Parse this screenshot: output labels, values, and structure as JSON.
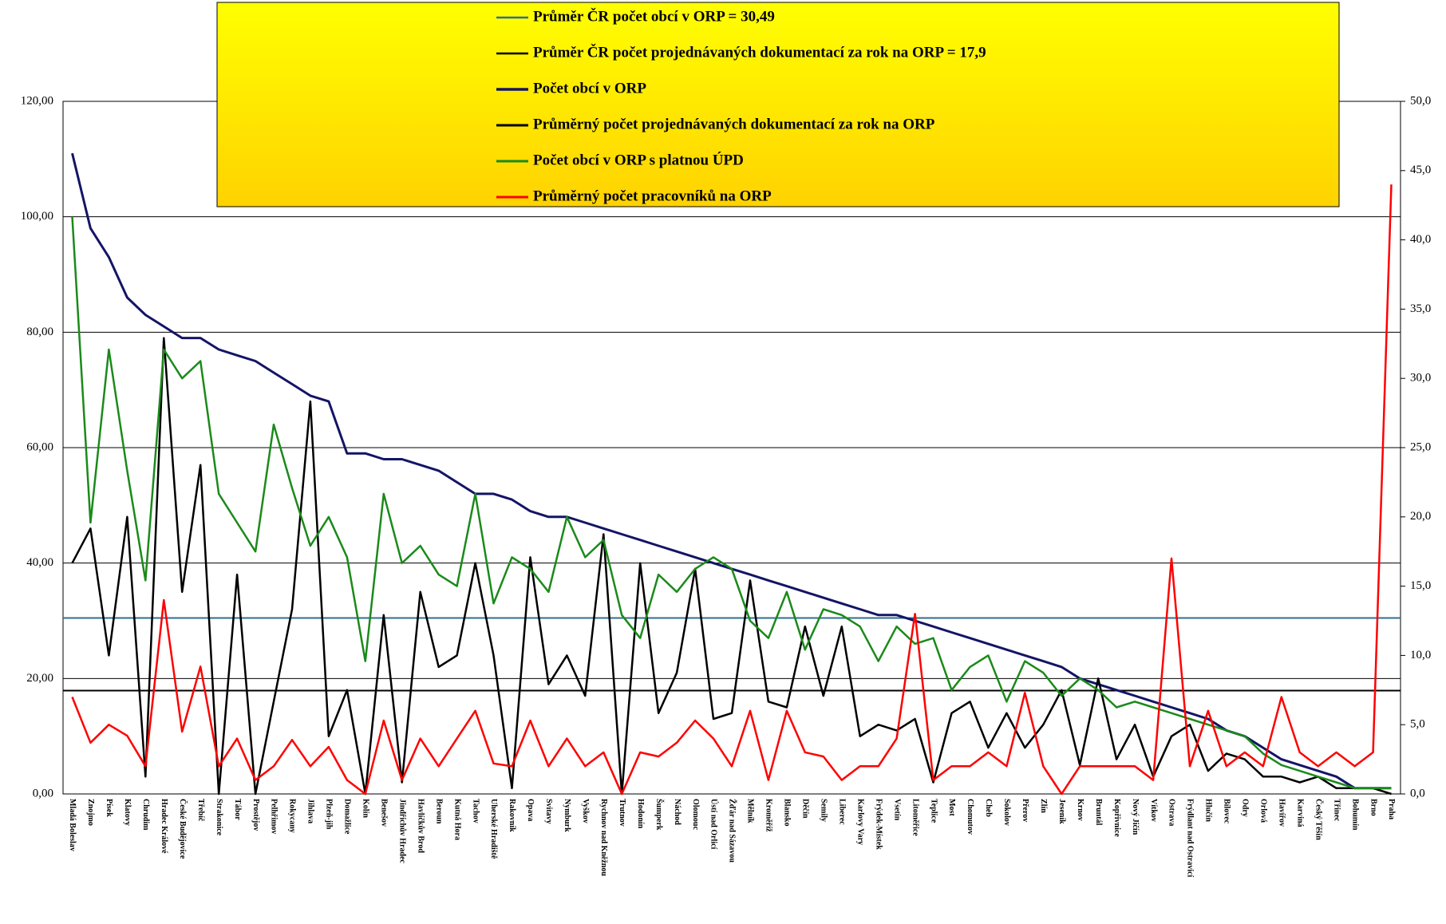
{
  "chart_data": {
    "type": "line",
    "categories": [
      "Mladá Boleslav",
      "Znojmo",
      "Písek",
      "Klatovy",
      "Chrudim",
      "Hradec Králové",
      "České Budějovice",
      "Třebíč",
      "Strakonice",
      "Tábor",
      "Prostějov",
      "Pelhřimov",
      "Rokycany",
      "Jihlava",
      "Plzeň-jih",
      "Domažlice",
      "Kolín",
      "Benešov",
      "Jindřichův Hradec",
      "Havlíčkův Brod",
      "Beroun",
      "Kutná Hora",
      "Tachov",
      "Uherské Hradiště",
      "Rakovník",
      "Opava",
      "Svitavy",
      "Nymburk",
      "Vyškov",
      "Rychnov nad Kněžnou",
      "Trutnov",
      "Hodonín",
      "Šumperk",
      "Náchod",
      "Olomouc",
      "Ústí nad Orlicí",
      "Žďár nad Sázavou",
      "Mělník",
      "Kroměříž",
      "Blansko",
      "Děčín",
      "Semily",
      "Liberec",
      "Karlovy Vary",
      "Frýdek-Místek",
      "Vsetín",
      "Litoměřice",
      "Teplice",
      "Most",
      "Chomutov",
      "Cheb",
      "Sokolov",
      "Přerov",
      "Zlín",
      "Jeseník",
      "Krnov",
      "Bruntál",
      "Kopřivnice",
      "Nový Jičín",
      "Vítkov",
      "Ostrava",
      "Frýdlant nad Ostravicí",
      "Hlučín",
      "Bílovec",
      "Odry",
      "Orlová",
      "Havířov",
      "Karviná",
      "Český Těšín",
      "Třinec",
      "Bohumín",
      "Brno",
      "Praha"
    ],
    "lines": [
      {
        "name": "Průměr ČR počet obcí v ORP = 30,49",
        "color": "#2f6f8f",
        "value": 30.49
      },
      {
        "name": "Průměr ČR počet projednávaných dokumentací za rok na ORP = 17,9",
        "color": "#000000",
        "value": 17.9
      }
    ],
    "series": [
      {
        "name": "Počet obcí v ORP",
        "color": "#141466",
        "values": [
          111,
          98,
          93,
          86,
          83,
          81,
          79,
          79,
          77,
          76,
          75,
          73,
          71,
          69,
          68,
          59,
          59,
          58,
          58,
          57,
          56,
          54,
          52,
          52,
          51,
          49,
          48,
          48,
          47,
          46,
          45,
          44,
          43,
          42,
          41,
          40,
          39,
          38,
          37,
          36,
          35,
          34,
          33,
          32,
          31,
          31,
          30,
          29,
          28,
          27,
          26,
          25,
          24,
          23,
          22,
          20,
          19,
          18,
          17,
          16,
          15,
          14,
          13,
          11,
          10,
          8,
          6,
          5,
          4,
          3,
          1,
          1,
          1
        ]
      },
      {
        "name": "Průměrný počet projednávaných dokumentací za rok na ORP",
        "color": "#000000",
        "values": [
          40,
          46,
          24,
          48,
          3,
          79,
          35,
          57,
          0,
          38,
          0,
          16,
          32,
          68,
          10,
          18,
          0,
          31,
          2,
          35,
          22,
          24,
          40,
          24,
          1,
          41,
          19,
          24,
          17,
          45,
          0,
          40,
          14,
          21,
          39,
          13,
          14,
          37,
          16,
          15,
          29,
          17,
          29,
          10,
          12,
          11,
          13,
          2,
          14,
          16,
          8,
          14,
          8,
          12,
          18,
          5,
          20,
          6,
          12,
          3,
          10,
          12,
          4,
          7,
          6,
          3,
          3,
          2,
          3,
          1,
          1,
          1,
          0
        ]
      },
      {
        "name": "Počet obcí v ORP s platnou ÚPD",
        "color": "#1a8a1a",
        "values": [
          100,
          47,
          77,
          56,
          37,
          77,
          72,
          75,
          52,
          47,
          42,
          64,
          53,
          43,
          48,
          41,
          23,
          52,
          40,
          43,
          38,
          36,
          52,
          33,
          41,
          39,
          35,
          48,
          41,
          44,
          31,
          27,
          38,
          35,
          39,
          41,
          39,
          30,
          27,
          35,
          25,
          32,
          31,
          29,
          23,
          29,
          26,
          27,
          18,
          22,
          24,
          16,
          23,
          21,
          17,
          20,
          18,
          15,
          16,
          15,
          14,
          13,
          12,
          11,
          10,
          7,
          5,
          4,
          3,
          2,
          1,
          1,
          1
        ]
      },
      {
        "name": "Průměrný počet pracovníků na ORP",
        "color": "#ff0000",
        "axis": "y2",
        "values": [
          7.0,
          3.7,
          5.0,
          4.2,
          2.0,
          14.0,
          4.5,
          9.2,
          2.0,
          4.0,
          1.0,
          2.0,
          3.9,
          2.0,
          3.4,
          1.0,
          0.0,
          5.3,
          1.0,
          4.0,
          2.0,
          4.0,
          6.0,
          2.2,
          2.0,
          5.3,
          2.0,
          4.0,
          2.0,
          3.0,
          0.0,
          3.0,
          2.7,
          3.7,
          5.3,
          4.0,
          2.0,
          6.0,
          1.0,
          6.0,
          3.0,
          2.7,
          1.0,
          2.0,
          2.0,
          4.0,
          13.0,
          1.0,
          2.0,
          2.0,
          3.0,
          2.0,
          7.3,
          2.0,
          0.0,
          2.0,
          2.0,
          2.0,
          2.0,
          1.0,
          17.0,
          2.0,
          6.0,
          2.0,
          3.0,
          2.0,
          7.0,
          3.0,
          2.0,
          3.0,
          2.0,
          3.0,
          44.0
        ]
      }
    ],
    "ylim": [
      0,
      120
    ],
    "yticks": [
      {
        "value": 0,
        "label": "0,00"
      },
      {
        "value": 20,
        "label": "20,00"
      },
      {
        "value": 40,
        "label": "40,00"
      },
      {
        "value": 60,
        "label": "60,00"
      },
      {
        "value": 80,
        "label": "80,00"
      },
      {
        "value": 100,
        "label": "100,00"
      },
      {
        "value": 120,
        "label": "120,00"
      }
    ],
    "y2lim": [
      0,
      50
    ],
    "y2ticks": [
      {
        "value": 0,
        "label": "0,0"
      },
      {
        "value": 5,
        "label": "5,0"
      },
      {
        "value": 10,
        "label": "10,0"
      },
      {
        "value": 15,
        "label": "15,0"
      },
      {
        "value": 20,
        "label": "20,0"
      },
      {
        "value": 25,
        "label": "25,0"
      },
      {
        "value": 30,
        "label": "30,0"
      },
      {
        "value": 35,
        "label": "35,0"
      },
      {
        "value": 40,
        "label": "40,0"
      },
      {
        "value": 45,
        "label": "45,0"
      },
      {
        "value": 50,
        "label": "50,0"
      }
    ],
    "grid": true
  }
}
